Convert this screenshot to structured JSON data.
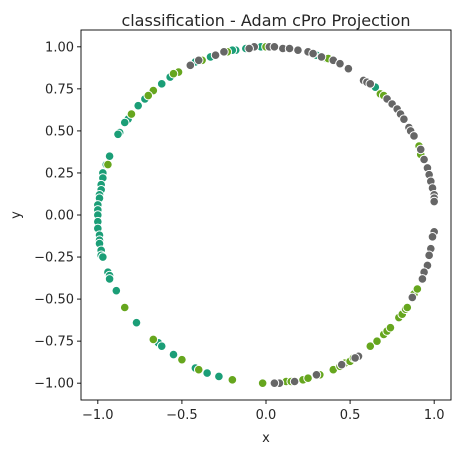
{
  "chart_data": {
    "type": "scatter",
    "title": "classification - Adam cPro Projection",
    "xlabel": "x",
    "ylabel": "y",
    "xlim": [
      -1.1,
      1.1
    ],
    "ylim": [
      -1.1,
      1.1
    ],
    "xticks": [
      -1.0,
      -0.5,
      0.0,
      0.5,
      1.0
    ],
    "xtick_labels": [
      "−1.0",
      "−0.5",
      "0.0",
      "0.5",
      "1.0"
    ],
    "yticks": [
      1.0,
      0.75,
      0.5,
      0.25,
      0.0,
      -0.25,
      -0.5,
      -0.75,
      -1.0
    ],
    "ytick_labels": [
      "1.00",
      "0.75",
      "0.50",
      "0.25",
      "0.00",
      "−0.25",
      "−0.50",
      "−0.75",
      "−1.00"
    ],
    "grid": false,
    "legend": "none",
    "series": [
      {
        "color": "#1b9e77",
        "points": [
          [
            -0.03,
            1.0
          ],
          [
            -0.12,
            0.99
          ],
          [
            -0.18,
            0.98
          ],
          [
            -0.2,
            0.98
          ],
          [
            -0.33,
            0.94
          ],
          [
            -0.42,
            0.91
          ],
          [
            -0.57,
            0.82
          ],
          [
            -0.62,
            0.78
          ],
          [
            -0.72,
            0.69
          ],
          [
            -0.76,
            0.65
          ],
          [
            -0.82,
            0.57
          ],
          [
            -0.84,
            0.55
          ],
          [
            -0.87,
            0.49
          ],
          [
            -0.88,
            0.48
          ],
          [
            -0.93,
            0.35
          ],
          [
            -0.95,
            0.3
          ],
          [
            -0.97,
            0.25
          ],
          [
            -0.97,
            0.22
          ],
          [
            -0.98,
            0.18
          ],
          [
            -0.98,
            0.15
          ],
          [
            -0.99,
            0.12
          ],
          [
            -0.99,
            0.1
          ],
          [
            -1.0,
            0.06
          ],
          [
            -1.0,
            0.03
          ],
          [
            -1.0,
            0.0
          ],
          [
            -1.0,
            -0.04
          ],
          [
            -1.0,
            -0.08
          ],
          [
            -0.99,
            -0.12
          ],
          [
            -0.99,
            -0.15
          ],
          [
            -0.99,
            -0.17
          ],
          [
            -0.98,
            -0.21
          ],
          [
            -0.98,
            -0.24
          ],
          [
            -0.97,
            -0.25
          ],
          [
            -0.94,
            -0.34
          ],
          [
            -0.93,
            -0.36
          ],
          [
            -0.93,
            -0.38
          ],
          [
            -0.89,
            -0.45
          ],
          [
            -0.84,
            -0.55
          ],
          [
            -0.77,
            -0.64
          ],
          [
            -0.64,
            -0.76
          ],
          [
            -0.62,
            -0.78
          ],
          [
            -0.55,
            -0.83
          ],
          [
            -0.42,
            -0.91
          ],
          [
            -0.35,
            -0.94
          ],
          [
            -0.28,
            -0.96
          ],
          [
            0.3,
            0.95
          ],
          [
            0.36,
            0.93
          ],
          [
            0.65,
            0.76
          ]
        ]
      },
      {
        "color": "#66a61e",
        "points": [
          [
            0.0,
            1.0
          ],
          [
            0.37,
            0.93
          ],
          [
            -0.23,
            0.97
          ],
          [
            -0.38,
            0.92
          ],
          [
            -0.52,
            0.85
          ],
          [
            -0.55,
            0.84
          ],
          [
            -0.67,
            0.74
          ],
          [
            -0.7,
            0.71
          ],
          [
            -0.8,
            0.6
          ],
          [
            -0.94,
            0.3
          ],
          [
            -0.84,
            -0.55
          ],
          [
            -0.67,
            -0.74
          ],
          [
            -0.5,
            -0.86
          ],
          [
            -0.4,
            -0.92
          ],
          [
            -0.2,
            -0.98
          ],
          [
            -0.02,
            -1.0
          ],
          [
            0.07,
            -1.0
          ],
          [
            0.12,
            -0.99
          ],
          [
            0.15,
            -0.99
          ],
          [
            0.22,
            -0.98
          ],
          [
            0.25,
            -0.97
          ],
          [
            0.32,
            -0.95
          ],
          [
            0.4,
            -0.92
          ],
          [
            0.44,
            -0.9
          ],
          [
            0.47,
            -0.88
          ],
          [
            0.5,
            -0.87
          ],
          [
            0.52,
            -0.85
          ],
          [
            0.62,
            -0.78
          ],
          [
            0.66,
            -0.75
          ],
          [
            0.7,
            -0.71
          ],
          [
            0.72,
            -0.69
          ],
          [
            0.74,
            -0.67
          ],
          [
            0.79,
            -0.61
          ],
          [
            0.81,
            -0.59
          ],
          [
            0.83,
            -0.56
          ],
          [
            0.84,
            -0.55
          ],
          [
            0.88,
            -0.47
          ],
          [
            0.9,
            -0.44
          ],
          [
            0.91,
            0.41
          ],
          [
            0.92,
            0.36
          ],
          [
            0.68,
            0.72
          ],
          [
            0.7,
            0.71
          ]
        ]
      },
      {
        "color": "#666666",
        "points": [
          [
            -0.07,
            1.0
          ],
          [
            -0.1,
            0.99
          ],
          [
            -0.25,
            0.97
          ],
          [
            -0.3,
            0.95
          ],
          [
            -0.4,
            0.92
          ],
          [
            -0.45,
            0.89
          ],
          [
            0.02,
            1.0
          ],
          [
            0.05,
            1.0
          ],
          [
            0.1,
            0.99
          ],
          [
            0.14,
            0.99
          ],
          [
            0.19,
            0.98
          ],
          [
            0.25,
            0.97
          ],
          [
            0.28,
            0.96
          ],
          [
            0.33,
            0.94
          ],
          [
            0.4,
            0.92
          ],
          [
            0.44,
            0.9
          ],
          [
            0.49,
            0.87
          ],
          [
            0.58,
            0.8
          ],
          [
            0.6,
            0.79
          ],
          [
            0.62,
            0.78
          ],
          [
            0.72,
            0.69
          ],
          [
            0.75,
            0.66
          ],
          [
            0.78,
            0.63
          ],
          [
            0.8,
            0.6
          ],
          [
            0.82,
            0.57
          ],
          [
            0.85,
            0.52
          ],
          [
            0.86,
            0.5
          ],
          [
            0.88,
            0.47
          ],
          [
            0.92,
            0.39
          ],
          [
            0.94,
            0.33
          ],
          [
            0.96,
            0.28
          ],
          [
            0.97,
            0.24
          ],
          [
            0.98,
            0.2
          ],
          [
            0.99,
            0.16
          ],
          [
            1.0,
            0.12
          ],
          [
            1.0,
            0.1
          ],
          [
            1.0,
            0.08
          ],
          [
            1.0,
            -0.1
          ],
          [
            0.99,
            -0.13
          ],
          [
            0.98,
            -0.2
          ],
          [
            0.97,
            -0.24
          ],
          [
            0.96,
            -0.3
          ],
          [
            0.94,
            -0.34
          ],
          [
            0.93,
            -0.38
          ],
          [
            0.87,
            -0.49
          ],
          [
            0.55,
            -0.84
          ],
          [
            0.53,
            -0.85
          ],
          [
            0.45,
            -0.89
          ],
          [
            0.3,
            -0.95
          ],
          [
            0.17,
            -0.99
          ],
          [
            0.08,
            -1.0
          ],
          [
            0.05,
            -1.0
          ]
        ]
      }
    ]
  }
}
